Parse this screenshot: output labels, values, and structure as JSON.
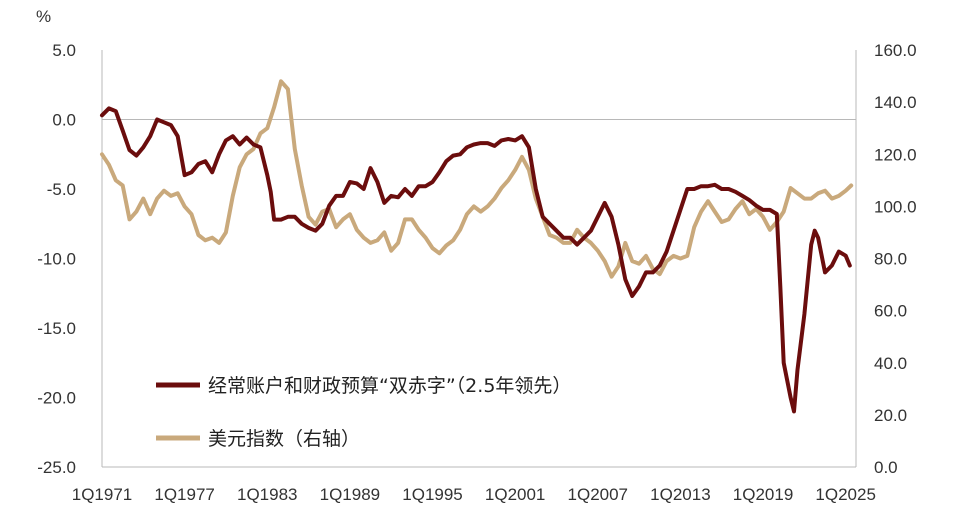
{
  "chart_data": {
    "type": "line",
    "title": "",
    "left_axis_unit": "%",
    "ylim_left": [
      -25.0,
      5.0
    ],
    "yticks_left": [
      "5.0",
      "0.0",
      "-5.0",
      "-10.0",
      "-15.0",
      "-20.0",
      "-25.0"
    ],
    "ylim_right": [
      0.0,
      160.0
    ],
    "yticks_right": [
      "160.0",
      "140.0",
      "120.0",
      "100.0",
      "80.0",
      "60.0",
      "40.0",
      "20.0",
      "0.0"
    ],
    "xlim": [
      1971.0,
      2025.75
    ],
    "xticks": [
      {
        "label": "1Q1971",
        "value": 1971.0
      },
      {
        "label": "1Q1977",
        "value": 1977.0
      },
      {
        "label": "1Q1983",
        "value": 1983.0
      },
      {
        "label": "1Q1989",
        "value": 1989.0
      },
      {
        "label": "1Q1995",
        "value": 1995.0
      },
      {
        "label": "1Q2001",
        "value": 2001.0
      },
      {
        "label": "1Q2007",
        "value": 2007.0
      },
      {
        "label": "1Q2013",
        "value": 2013.0
      },
      {
        "label": "1Q2019",
        "value": 2019.0
      },
      {
        "label": "1Q2025",
        "value": 2025.0
      }
    ],
    "grid": false,
    "legend_position": "bottom-left",
    "series": [
      {
        "name": "经常账户和财政预算“双赤字”（2.5年领先）",
        "axis": "left",
        "color": "#6b0d0d",
        "x": [
          1971.0,
          1971.5,
          1972.0,
          1972.5,
          1973.0,
          1973.5,
          1974.0,
          1974.5,
          1975.0,
          1975.5,
          1976.0,
          1976.5,
          1977.0,
          1977.5,
          1978.0,
          1978.5,
          1979.0,
          1979.5,
          1980.0,
          1980.5,
          1981.0,
          1981.5,
          1982.0,
          1982.5,
          1983.0,
          1983.25,
          1983.5,
          1984.0,
          1984.5,
          1985.0,
          1985.5,
          1986.0,
          1986.5,
          1987.0,
          1987.5,
          1988.0,
          1988.5,
          1989.0,
          1989.5,
          1990.0,
          1990.5,
          1991.0,
          1991.5,
          1992.0,
          1992.5,
          1993.0,
          1993.5,
          1994.0,
          1994.5,
          1995.0,
          1995.5,
          1996.0,
          1996.5,
          1997.0,
          1997.5,
          1998.0,
          1998.5,
          1999.0,
          1999.5,
          2000.0,
          2000.5,
          2001.0,
          2001.5,
          2002.0,
          2002.5,
          2003.0,
          2003.5,
          2004.0,
          2004.5,
          2005.0,
          2005.5,
          2006.0,
          2006.5,
          2007.0,
          2007.5,
          2008.0,
          2008.5,
          2009.0,
          2009.5,
          2010.0,
          2010.5,
          2011.0,
          2011.5,
          2012.0,
          2012.5,
          2013.0,
          2013.5,
          2014.0,
          2014.5,
          2015.0,
          2015.5,
          2016.0,
          2016.5,
          2017.0,
          2017.5,
          2018.0,
          2018.5,
          2019.0,
          2019.5,
          2020.0,
          2020.25,
          2020.5,
          2021.0,
          2021.25,
          2021.5,
          2022.0,
          2022.5,
          2022.75,
          2023.0,
          2023.5,
          2024.0,
          2024.5,
          2025.0,
          2025.3
        ],
        "values": [
          0.3,
          0.8,
          0.6,
          -0.8,
          -2.2,
          -2.6,
          -2.0,
          -1.2,
          0.0,
          -0.2,
          -0.4,
          -1.2,
          -4.0,
          -3.8,
          -3.2,
          -3.0,
          -3.8,
          -2.5,
          -1.5,
          -1.2,
          -1.8,
          -1.3,
          -1.8,
          -2.0,
          -4.0,
          -5.2,
          -7.2,
          -7.2,
          -7.0,
          -7.0,
          -7.5,
          -7.8,
          -8.0,
          -7.5,
          -6.2,
          -5.5,
          -5.5,
          -4.5,
          -4.6,
          -5.0,
          -3.5,
          -4.5,
          -6.0,
          -5.5,
          -5.6,
          -5.0,
          -5.5,
          -4.8,
          -4.8,
          -4.5,
          -3.8,
          -3.0,
          -2.6,
          -2.5,
          -2.0,
          -1.8,
          -1.7,
          -1.7,
          -1.9,
          -1.5,
          -1.4,
          -1.5,
          -1.2,
          -2.0,
          -5.0,
          -7.0,
          -7.5,
          -8.0,
          -8.5,
          -8.5,
          -9.0,
          -8.5,
          -8.0,
          -7.0,
          -6.0,
          -7.0,
          -9.0,
          -11.5,
          -12.7,
          -12.0,
          -11.0,
          -11.0,
          -10.5,
          -9.5,
          -8.0,
          -6.5,
          -5.0,
          -5.0,
          -4.8,
          -4.8,
          -4.7,
          -5.0,
          -5.0,
          -5.2,
          -5.5,
          -5.8,
          -6.2,
          -6.5,
          -6.5,
          -6.8,
          -12.0,
          -17.5,
          -20.0,
          -21.0,
          -18.0,
          -14.0,
          -9.0,
          -8.0,
          -8.5,
          -11.0,
          -10.5,
          -9.5,
          -9.8,
          -10.5
        ]
      },
      {
        "name": "美元指数（右轴）",
        "axis": "right",
        "color": "#c9a97c",
        "x": [
          1971.0,
          1971.5,
          1972.0,
          1972.5,
          1973.0,
          1973.5,
          1974.0,
          1974.5,
          1975.0,
          1975.5,
          1976.0,
          1976.5,
          1977.0,
          1977.5,
          1978.0,
          1978.5,
          1979.0,
          1979.5,
          1980.0,
          1980.5,
          1981.0,
          1981.5,
          1982.0,
          1982.5,
          1983.0,
          1983.5,
          1984.0,
          1984.5,
          1985.0,
          1985.5,
          1986.0,
          1986.5,
          1987.0,
          1987.5,
          1988.0,
          1988.5,
          1989.0,
          1989.5,
          1990.0,
          1990.5,
          1991.0,
          1991.5,
          1992.0,
          1992.5,
          1993.0,
          1993.5,
          1994.0,
          1994.5,
          1995.0,
          1995.5,
          1996.0,
          1996.5,
          1997.0,
          1997.5,
          1998.0,
          1998.5,
          1999.0,
          1999.5,
          2000.0,
          2000.5,
          2001.0,
          2001.5,
          2002.0,
          2002.5,
          2003.0,
          2003.5,
          2004.0,
          2004.5,
          2005.0,
          2005.5,
          2006.0,
          2006.5,
          2007.0,
          2007.5,
          2008.0,
          2008.5,
          2009.0,
          2009.5,
          2010.0,
          2010.5,
          2011.0,
          2011.5,
          2012.0,
          2012.5,
          2013.0,
          2013.5,
          2014.0,
          2014.5,
          2015.0,
          2015.5,
          2016.0,
          2016.5,
          2017.0,
          2017.5,
          2018.0,
          2018.5,
          2019.0,
          2019.5,
          2020.0,
          2020.5,
          2021.0,
          2021.5,
          2022.0,
          2022.5,
          2023.0,
          2023.5,
          2024.0,
          2024.5,
          2025.0,
          2025.4
        ],
        "values": [
          120,
          116,
          110,
          108,
          95,
          98,
          103,
          97,
          103,
          106,
          104,
          105,
          100,
          97,
          89,
          87,
          88,
          86,
          90,
          104,
          115,
          120,
          122,
          128,
          130,
          138,
          148,
          145,
          122,
          108,
          96,
          93,
          98,
          99,
          92,
          95,
          97,
          91,
          88,
          86,
          87,
          90,
          83,
          86,
          95,
          95,
          91,
          88,
          84,
          82,
          85,
          87,
          91,
          97,
          100,
          98,
          100,
          103,
          107,
          110,
          114,
          119,
          114,
          103,
          96,
          89,
          88,
          86,
          86,
          91,
          88,
          86,
          83,
          79,
          73,
          77,
          86,
          79,
          78,
          81,
          76,
          74,
          79,
          81,
          80,
          81,
          92,
          98,
          102,
          98,
          94,
          95,
          99,
          102,
          97,
          99,
          96,
          91,
          94,
          98,
          107,
          105,
          103,
          103,
          105,
          106,
          103,
          104,
          106,
          108
        ]
      }
    ]
  }
}
